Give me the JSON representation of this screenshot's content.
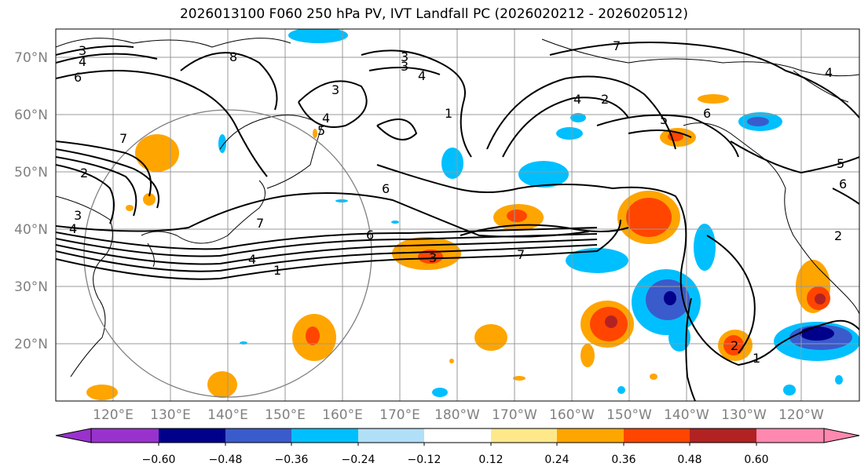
{
  "title": "2026013100 F060 250 hPa PV, IVT Landfall PC (2026020212 - 2026020512)",
  "map": {
    "lat_labels": [
      "70°N",
      "60°N",
      "50°N",
      "40°N",
      "30°N",
      "20°N"
    ],
    "lat_values": [
      70,
      60,
      50,
      40,
      30,
      20
    ],
    "lon_labels": [
      "120°E",
      "130°E",
      "140°E",
      "150°E",
      "160°E",
      "170°E",
      "180°W",
      "170°W",
      "160°W",
      "150°W",
      "140°W",
      "130°W",
      "120°W"
    ],
    "lat_range": [
      10,
      75
    ],
    "contour_labels": [
      "3",
      "4",
      "6",
      "7",
      "2",
      "3",
      "4",
      "8",
      "3",
      "4",
      "3",
      "5",
      "4",
      "7",
      "1",
      "6",
      "4",
      "1",
      "6",
      "3",
      "7",
      "3",
      "4",
      "2",
      "7",
      "5",
      "6",
      "5",
      "6",
      "4",
      "2",
      "1",
      "2"
    ]
  },
  "colorbar": {
    "ticks": [
      "−0.60",
      "−0.48",
      "−0.36",
      "−0.24",
      "−0.12",
      "0.12",
      "0.24",
      "0.36",
      "0.48",
      "0.60"
    ],
    "colors": [
      "#9932CC",
      "#00008B",
      "#3A5BCC",
      "#00BFFF",
      "#B0E0F8",
      "#FFFFFF",
      "#FFE88A",
      "#FFA500",
      "#FF4500",
      "#B22222",
      "#FF88B0"
    ]
  }
}
